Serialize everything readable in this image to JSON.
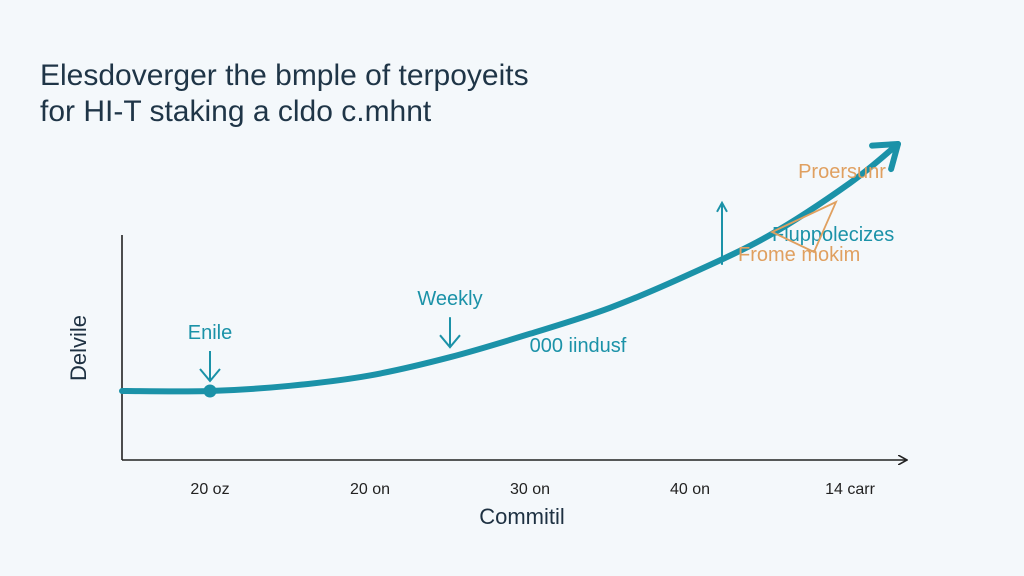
{
  "chart_data": {
    "type": "line",
    "title": [
      "Elesdoverger the bmple of terpoyeits",
      "for HI-T staking a cldo c.mhnt"
    ],
    "xlabel": "Commitil",
    "ylabel": "Delvile",
    "x_tick_labels": [
      "20 oz",
      "20 on",
      "30 on",
      "40 on",
      "14 carr"
    ],
    "x_tick_values": [
      0,
      1,
      2,
      3,
      4
    ],
    "xlim": [
      -0.55,
      4.35
    ],
    "ylim": [
      0,
      1
    ],
    "grid": false,
    "series": [
      {
        "color": "#1b92a8",
        "values_x": [
          -0.55,
          0,
          0.5,
          1,
          1.5,
          2,
          2.5,
          3,
          3.5,
          4,
          4.3
        ],
        "values_y": [
          0.15,
          0.15,
          0.17,
          0.21,
          0.28,
          0.37,
          0.47,
          0.6,
          0.75,
          0.95,
          1.1
        ]
      }
    ],
    "annotations": [
      {
        "text": "Enile",
        "color": "#1b92a8",
        "x": 0,
        "y": 0.15,
        "marker": "dot",
        "arrow": "down"
      },
      {
        "text": "Weekly",
        "color": "#1b92a8",
        "x": 1.5,
        "y": 0.28,
        "arrow": "down"
      },
      {
        "text": "000 iindusf",
        "color": "#1b92a8",
        "x": 2.3,
        "y": 0.33
      },
      {
        "text": "Fluppolecizes",
        "color": "#1b92a8",
        "x": 3.2,
        "y": 0.62,
        "arrow": "up"
      },
      {
        "text": "Proersunr",
        "color": "#e0a060",
        "x": 3.65,
        "y": 1.0
      },
      {
        "text": "Frome mokim",
        "color": "#e0a060",
        "x": 4.05,
        "y": 0.68
      }
    ]
  }
}
